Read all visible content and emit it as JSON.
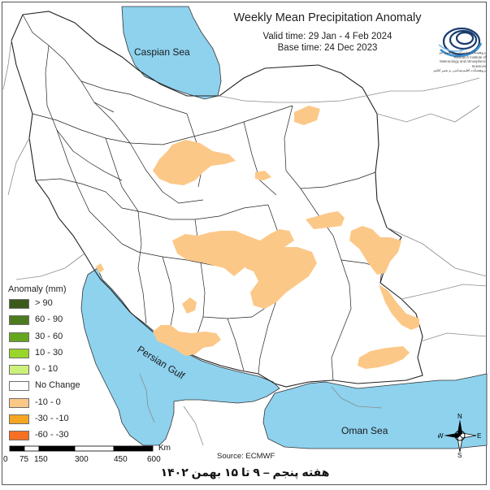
{
  "title": "Weekly Mean Precipitation Anomaly",
  "valid_time": "Valid time: 29 Jan - 4 Feb 2024",
  "base_time": "Base time: 24 Dec 2023",
  "source": "Source: ECMWF",
  "footer": "هفته پنجم – ۹ تا ۱۵ بهمن ۱۴۰۲",
  "seas": {
    "caspian": "Caspian Sea",
    "persian_gulf": "Persian Gulf",
    "oman": "Oman Sea"
  },
  "legend": {
    "title": "Anomaly (mm)",
    "items": [
      {
        "label": "> 90",
        "color": "#3a5a1a"
      },
      {
        "label": "60 - 90",
        "color": "#4d7a1f"
      },
      {
        "label": "30 - 60",
        "color": "#66a61e"
      },
      {
        "label": "10 - 30",
        "color": "#99d62b"
      },
      {
        "label": "0 - 10",
        "color": "#ccf07a"
      },
      {
        "label": "No Change",
        "color": "#ffffff"
      },
      {
        "label": "-10 - 0",
        "color": "#fcc888"
      },
      {
        "label": "-30 - -10",
        "color": "#f5a623"
      },
      {
        "label": "-60 - -30",
        "color": "#f57022"
      }
    ]
  },
  "scale": {
    "ticks": [
      "0",
      "75",
      "150",
      "300",
      "450",
      "600"
    ],
    "unit": "Km"
  },
  "compass": {
    "n": "N",
    "s": "S",
    "e": "E",
    "w": "W"
  },
  "logo_text": "پژوهشگاه هواشناسی و علوم جو\nResearch Institute of\nMeteorology and Atmospheric\nSciences\nپژوهشکده اقلیم‌شناسی و تغییر اقلیم",
  "colors": {
    "water": "#8ed2ee",
    "anomaly": "#fcc888",
    "border": "#222222",
    "neighbor": "#8c8c8c"
  }
}
